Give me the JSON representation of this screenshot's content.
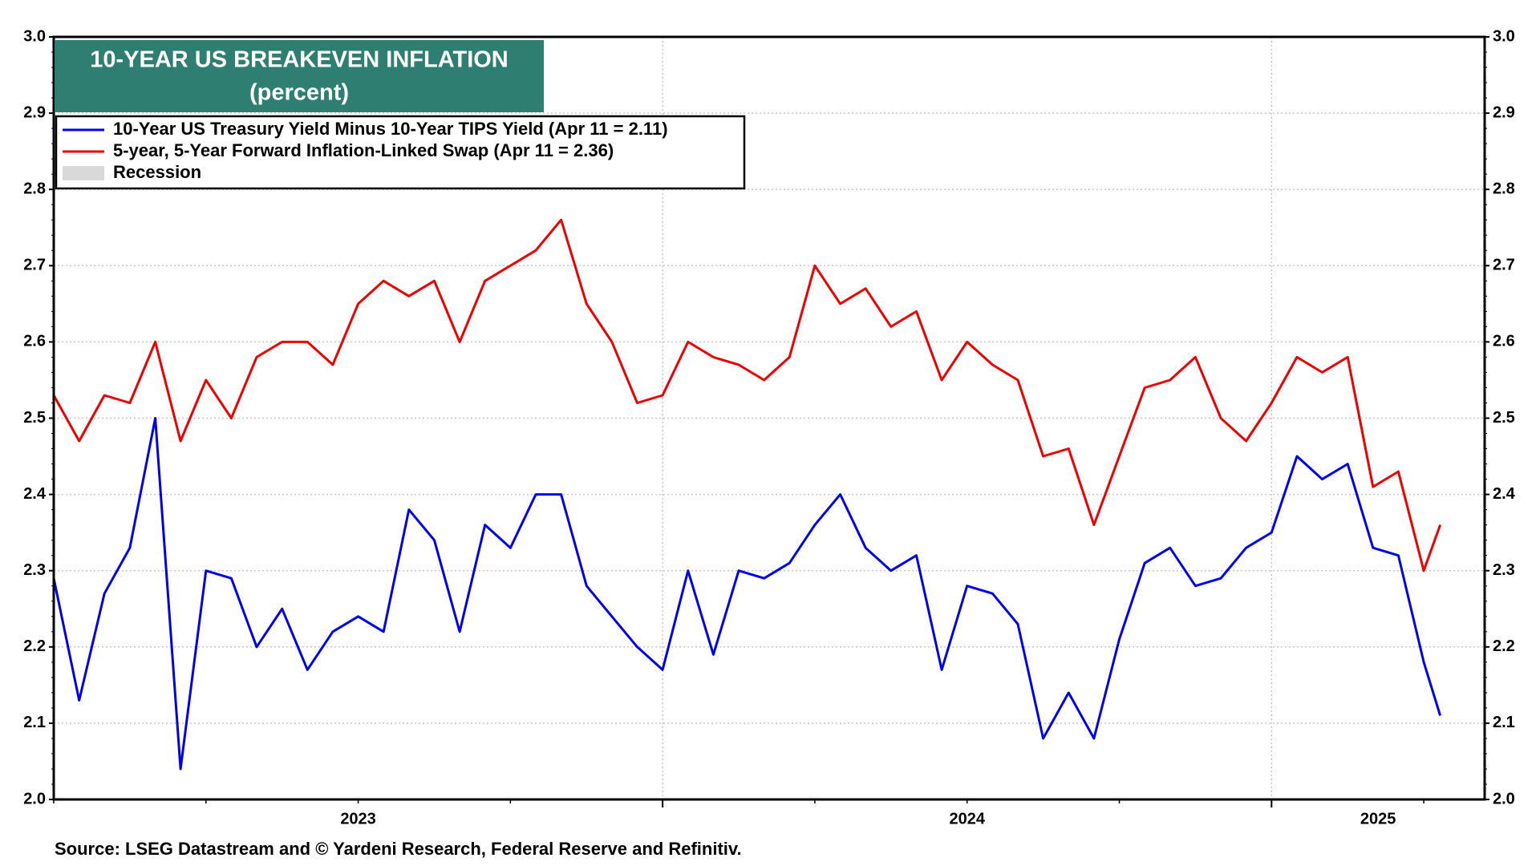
{
  "chart_data": {
    "type": "line",
    "title": "10-YEAR US BREAKEVEN INFLATION",
    "subtitle": "(percent)",
    "source": "Source: LSEG Datastream and © Yardeni Research, Federal Reserve and Refinitiv.",
    "x": [
      2023.0,
      2023.0417,
      2023.0833,
      2023.125,
      2023.1667,
      2023.2083,
      2023.25,
      2023.2917,
      2023.3333,
      2023.375,
      2023.4167,
      2023.4583,
      2023.5,
      2023.5417,
      2023.5833,
      2023.625,
      2023.6667,
      2023.7083,
      2023.75,
      2023.7917,
      2023.8333,
      2023.875,
      2023.9167,
      2023.9583,
      2024.0,
      2024.0417,
      2024.0833,
      2024.125,
      2024.1667,
      2024.2083,
      2024.25,
      2024.2917,
      2024.3333,
      2024.375,
      2024.4167,
      2024.4583,
      2024.5,
      2024.5417,
      2024.5833,
      2024.625,
      2024.6667,
      2024.7083,
      2024.75,
      2024.7917,
      2024.8333,
      2024.875,
      2024.9167,
      2024.9583,
      2025.0,
      2025.0417,
      2025.0833,
      2025.125,
      2025.1667,
      2025.2083,
      2025.25,
      2025.277
    ],
    "series": [
      {
        "name": "10-Year US Treasury Yield Minus 10-Year TIPS Yield (Apr 11 = 2.11)",
        "color": "#0000ee",
        "values": [
          2.29,
          2.13,
          2.27,
          2.33,
          2.5,
          2.04,
          2.3,
          2.29,
          2.2,
          2.25,
          2.17,
          2.22,
          2.24,
          2.22,
          2.38,
          2.34,
          2.22,
          2.36,
          2.33,
          2.4,
          2.4,
          2.28,
          2.24,
          2.2,
          2.17,
          2.3,
          2.19,
          2.3,
          2.29,
          2.31,
          2.36,
          2.4,
          2.33,
          2.3,
          2.32,
          2.17,
          2.28,
          2.27,
          2.23,
          2.08,
          2.14,
          2.08,
          2.21,
          2.31,
          2.33,
          2.28,
          2.29,
          2.33,
          2.35,
          2.45,
          2.42,
          2.44,
          2.33,
          2.32,
          2.18,
          2.11
        ]
      },
      {
        "name": "5-year, 5-Year Forward Inflation-Linked Swap (Apr 11 = 2.36)",
        "color": "#ee0000",
        "values": [
          2.53,
          2.47,
          2.53,
          2.52,
          2.6,
          2.47,
          2.55,
          2.5,
          2.58,
          2.6,
          2.6,
          2.57,
          2.65,
          2.68,
          2.66,
          2.68,
          2.6,
          2.68,
          2.7,
          2.72,
          2.76,
          2.65,
          2.6,
          2.52,
          2.53,
          2.6,
          2.58,
          2.57,
          2.55,
          2.58,
          2.7,
          2.65,
          2.67,
          2.62,
          2.64,
          2.55,
          2.6,
          2.57,
          2.55,
          2.45,
          2.46,
          2.36,
          2.45,
          2.54,
          2.55,
          2.58,
          2.5,
          2.47,
          2.52,
          2.58,
          2.56,
          2.58,
          2.41,
          2.43,
          2.3,
          2.36
        ]
      }
    ],
    "legend_extra": {
      "name": "Recession",
      "color": "#d9d9d9"
    },
    "xlim": [
      2023.0,
      2025.35
    ],
    "xticks": [
      {
        "value": 2023.5,
        "label": "2023"
      },
      {
        "value": 2024.5,
        "label": "2024"
      },
      {
        "value": 2025.175,
        "label": "2025"
      }
    ],
    "xgrid": [
      2024,
      2025
    ],
    "ylim": [
      2.0,
      3.0
    ],
    "yticks": [
      {
        "value": 2.0,
        "label": "2.0"
      },
      2.1,
      2.2,
      2.3,
      2.4,
      2.5,
      2.6,
      2.7,
      2.8,
      2.9,
      {
        "value": 3.0,
        "label": "3.0"
      }
    ],
    "grid": true
  }
}
